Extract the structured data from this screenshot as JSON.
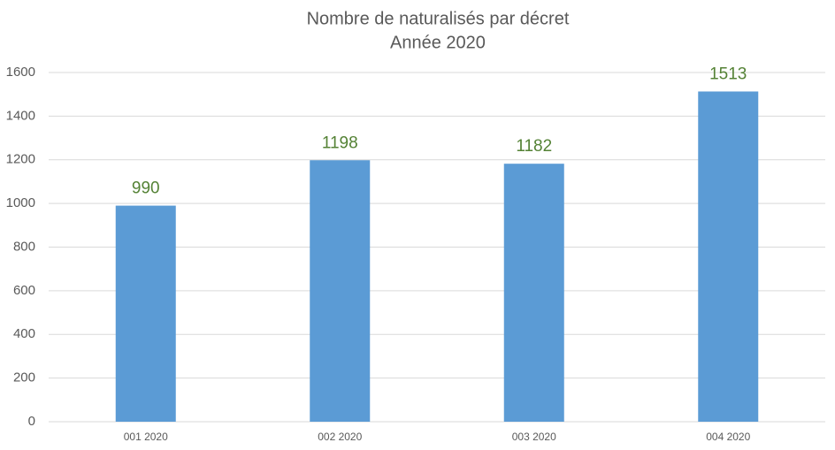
{
  "chart_data": {
    "type": "bar",
    "title": "Nombre de naturalisés par décret",
    "subtitle": "Année 2020",
    "categories": [
      "001 2020",
      "002 2020",
      "003 2020",
      "004 2020"
    ],
    "values": [
      990,
      1198,
      1182,
      1513
    ],
    "color": "#5b9bd5",
    "label_color": "#548235",
    "ylim": [
      0,
      1600
    ],
    "yticks": [
      0,
      200,
      400,
      600,
      800,
      1000,
      1200,
      1400,
      1600
    ],
    "grid": true
  }
}
